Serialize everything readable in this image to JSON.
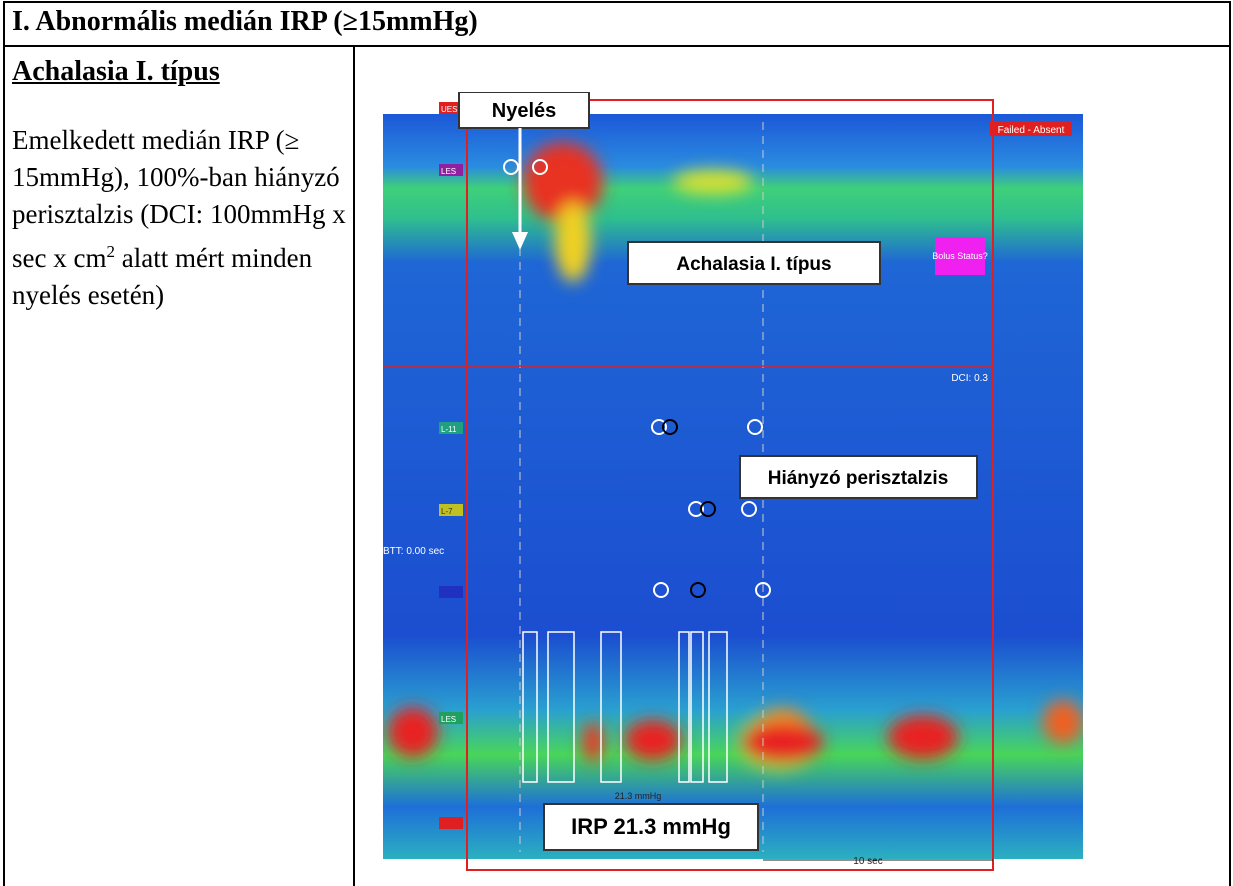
{
  "header": {
    "title": "I. Abnormális medián IRP (≥15mmHg)"
  },
  "left": {
    "heading": "Achalasia I. típus",
    "description": [
      "Emelkedett medián IRP (≥ 15mmHg), 100%-ban hiányzó perisztalzis (DCI: 100mmHg x sec x cm",
      "2",
      " alatt mért minden nyelés esetén)"
    ]
  },
  "figure": {
    "annotations": {
      "swallow": "Nyelés",
      "type_label": "Achalasia I. típus",
      "peristalsis": "Hiányzó perisztalzis",
      "irp": "IRP 21.3 mmHg"
    },
    "overlay": {
      "status": "Failed - Absent",
      "bolus": "Bolus Status?",
      "dci": "DCI: 0.3",
      "btt": "BTT: 0.00 sec",
      "irp_value": "21.3 mmHg",
      "time_scale": "10 sec"
    },
    "markers": [
      "UES",
      "LES",
      "L-11",
      "L-7",
      "LES"
    ]
  }
}
